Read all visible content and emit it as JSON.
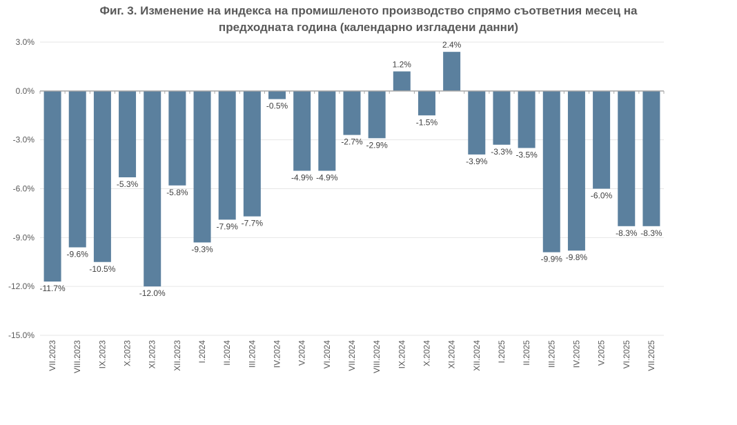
{
  "title_line1": "Фиг. 3. Изменение на индекса на промишленото производство спрямо съответния месец на",
  "title_line2": "предходната година (календарно изгладени данни)",
  "colors": {
    "bar": "#5b809e",
    "grid": "#e6e6e6",
    "axis": "#a6a6a6"
  },
  "chart_data": {
    "type": "bar",
    "categories": [
      "VII.2023",
      "VIII.2023",
      "IX.2023",
      "X.2023",
      "XI.2023",
      "XII.2023",
      "I.2024",
      "II.2024",
      "III.2024",
      "IV.2024",
      "V.2024",
      "VI.2024",
      "VII.2024",
      "VIII.2024",
      "IX.2024",
      "X.2024",
      "XI.2024",
      "XII.2024",
      "I.2025",
      "II.2025",
      "III.2025",
      "IV.2025",
      "V.2025",
      "VI.2025",
      "VII.2025"
    ],
    "values": [
      -11.7,
      -9.6,
      -10.5,
      -5.3,
      -12.0,
      -5.8,
      -9.3,
      -7.9,
      -7.7,
      -0.5,
      -4.9,
      -4.9,
      -2.7,
      -2.9,
      1.2,
      -1.5,
      2.4,
      -3.9,
      -3.3,
      -3.5,
      -9.9,
      -9.8,
      -6.0,
      -8.3,
      -8.3
    ],
    "data_labels": [
      "-11.7%",
      "-9.6%",
      "-10.5%",
      "-5.3%",
      "-12.0%",
      "-5.8%",
      "-9.3%",
      "-7.9%",
      "-7.7%",
      "-0.5%",
      "-4.9%",
      "-4.9%",
      "-2.7%",
      "-2.9%",
      "1.2%",
      "-1.5%",
      "2.4%",
      "-3.9%",
      "-3.3%",
      "-3.5%",
      "-9.9%",
      "-9.8%",
      "-6.0%",
      "-8.3%",
      "-8.3%"
    ],
    "yticks": [
      3.0,
      0.0,
      -3.0,
      -6.0,
      -9.0,
      -12.0,
      -15.0
    ],
    "ytick_labels": [
      "3.0%",
      "0.0%",
      "-3.0%",
      "-6.0%",
      "-9.0%",
      "-12.0%",
      "-15.0%"
    ],
    "ylim": [
      -15.0,
      3.0
    ],
    "grid": true,
    "legend": "none"
  }
}
